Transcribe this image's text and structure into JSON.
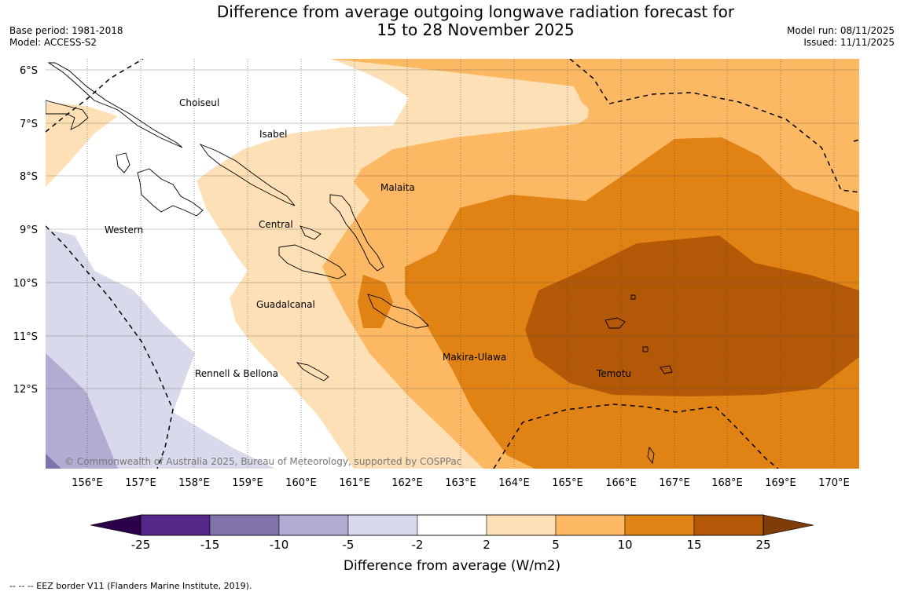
{
  "title_line1": "Difference from average outgoing longwave radiation forecast for",
  "title_line2": "15 to 28 November 2025",
  "base_period": "Base period: 1981-2018",
  "model": "Model: ACCESS-S2",
  "model_run": "Model run: 08/11/2025",
  "issued": "Issued: 11/11/2025",
  "copyright": "© Commonwealth of Australia 2025, Bureau of Meteorology, supported by COSPPac",
  "lat_labels": [
    "6°S",
    "7°S",
    "8°S",
    "9°S",
    "10°S",
    "11°S",
    "12°S"
  ],
  "lon_labels": [
    "156°E",
    "157°E",
    "158°E",
    "159°E",
    "160°E",
    "161°E",
    "162°E",
    "163°E",
    "164°E",
    "165°E",
    "166°E",
    "167°E",
    "168°E",
    "169°E",
    "170°E"
  ],
  "regions": {
    "choiseul": "Choiseul",
    "isabel": "Isabel",
    "malaita": "Malaita",
    "western": "Western",
    "central": "Central",
    "guadalcanal": "Guadalcanal",
    "makira": "Makira-Ulawa",
    "rennell": "Rennell & Bellona",
    "temotu": "Temotu"
  },
  "colorbar": {
    "ticks": [
      "-25",
      "-15",
      "-10",
      "-5",
      "-2",
      "2",
      "5",
      "10",
      "15",
      "25"
    ],
    "label": "Difference from average (W/m2)",
    "colors": [
      "#542788",
      "#8073ac",
      "#b2abd2",
      "#d8daeb",
      "#ffffff",
      "#fee0b6",
      "#fdb863",
      "#e08214",
      "#b35806"
    ],
    "under_color": "#2d004b",
    "over_color": "#7f3b08"
  },
  "footer_note": "--  --  -- EEZ border V11 (Flanders Marine Institute, 2019)."
}
